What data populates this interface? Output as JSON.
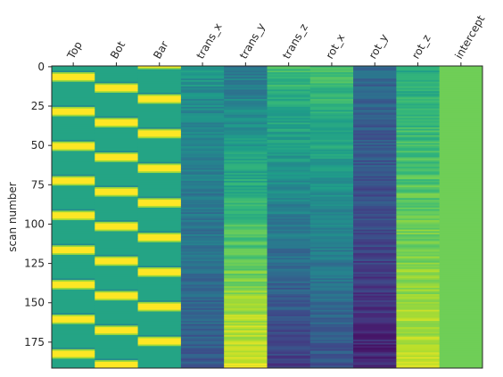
{
  "chart_data": {
    "type": "heatmap",
    "title": "",
    "xlabel": "",
    "ylabel": "scan number",
    "colormap": "viridis",
    "rows": 192,
    "ylim": [
      0,
      191
    ],
    "y_ticks": [
      0,
      25,
      50,
      75,
      100,
      125,
      150,
      175
    ],
    "columns": [
      "Top",
      "Bot",
      "Bar",
      "trans_x",
      "trans_y",
      "trans_z",
      "rot_x",
      "rot_y",
      "rot_z",
      "intercept"
    ],
    "column_descriptions": [
      {
        "name": "Top",
        "pattern": "block",
        "period": 22,
        "onset": 4,
        "duration": 6
      },
      {
        "name": "Bot",
        "pattern": "block",
        "period": 22,
        "onset": 11,
        "duration": 6
      },
      {
        "name": "Bar",
        "pattern": "block",
        "period": 22,
        "onset": 18,
        "duration": 6
      },
      {
        "name": "trans_x",
        "pattern": "drift",
        "start": 0.52,
        "end": 0.28
      },
      {
        "name": "trans_y",
        "pattern": "drift",
        "start": 0.4,
        "end": 0.95
      },
      {
        "name": "trans_z",
        "pattern": "drift",
        "start": 0.68,
        "end": 0.18
      },
      {
        "name": "rot_x",
        "pattern": "drift",
        "start": 0.7,
        "end": 0.25
      },
      {
        "name": "rot_y",
        "pattern": "drift",
        "start": 0.35,
        "end": 0.1
      },
      {
        "name": "rot_z",
        "pattern": "drift",
        "start": 0.6,
        "end": 0.92
      },
      {
        "name": "intercept",
        "pattern": "constant",
        "value": 0.78
      }
    ]
  }
}
